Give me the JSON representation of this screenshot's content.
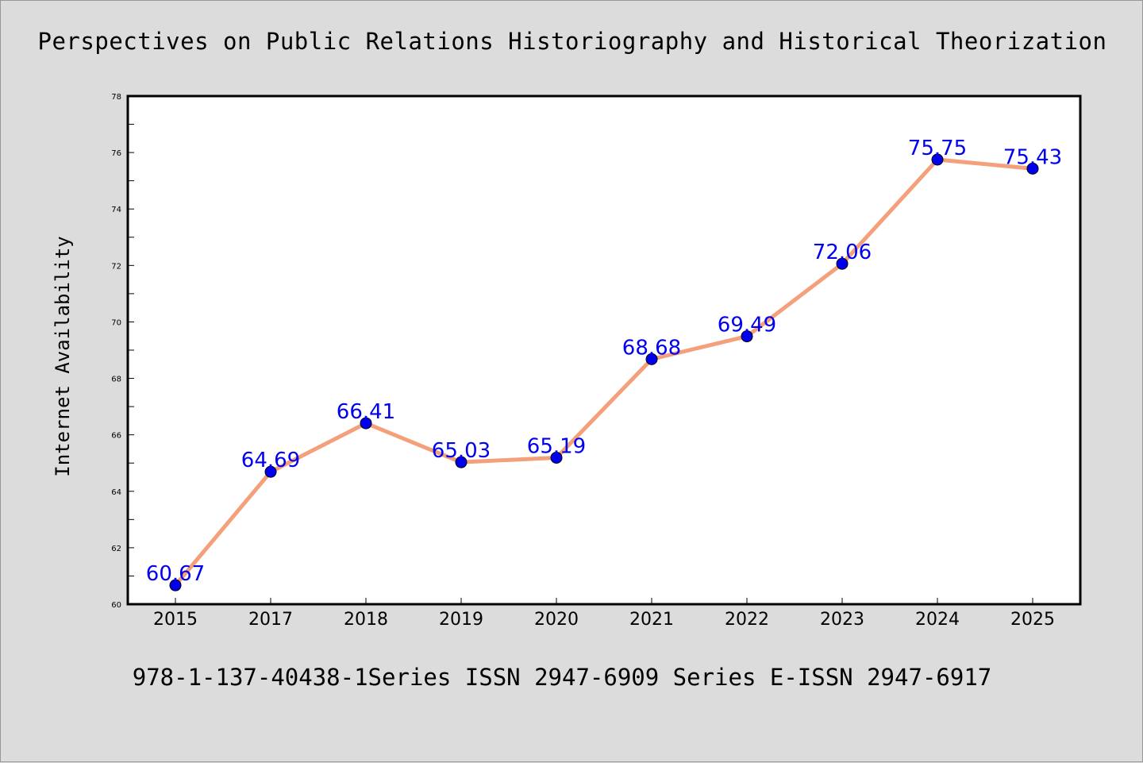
{
  "chart_data": {
    "type": "line",
    "title": "Perspectives on Public Relations Historiography and Historical Theorization",
    "xlabel": "",
    "ylabel": "Internet Availability",
    "categories": [
      "2015",
      "2017",
      "2018",
      "2019",
      "2020",
      "2021",
      "2022",
      "2023",
      "2024",
      "2025"
    ],
    "series": [
      {
        "values": [
          60.67,
          64.69,
          66.41,
          65.03,
          65.19,
          68.68,
          69.49,
          72.06,
          75.75,
          75.43
        ],
        "data_labels": [
          "60.67",
          "64.69",
          "66.41",
          "65.03",
          "65.19",
          "68.68",
          "69.49",
          "72.06",
          "75.75",
          "75.43"
        ]
      }
    ],
    "ylim": [
      60,
      78
    ],
    "yticks": [
      "60",
      "62",
      "64",
      "66",
      "68",
      "70",
      "72",
      "74",
      "76",
      "78"
    ],
    "grid": false,
    "legend": "none",
    "colors": {
      "line": "#f4a07a",
      "marker": "#0000ee",
      "label": "#0000ee",
      "background": "#dcdcdc",
      "plot_background": "#ffffff"
    }
  },
  "footer": {
    "text": "978-1-137-40438-1Series ISSN 2947-6909 Series E-ISSN 2947-6917"
  }
}
